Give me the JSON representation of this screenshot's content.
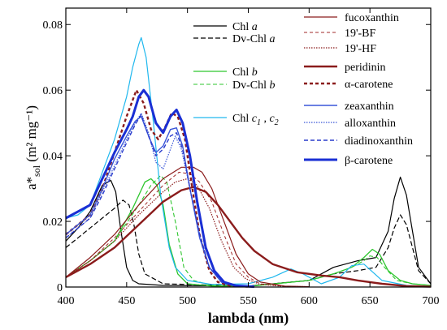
{
  "chart_data": {
    "type": "line",
    "xlabel": "lambda (nm)",
    "ylabel": "a*",
    "ylabel_sub": "sol",
    "ylabel_unit": " (m² mg⁻¹)",
    "xlim": [
      400,
      700
    ],
    "ylim": [
      0,
      0.085
    ],
    "xticks": [
      400,
      450,
      500,
      550,
      600,
      650,
      700
    ],
    "yticks": [
      0,
      0.02,
      0.04,
      0.06,
      0.08
    ],
    "ytick_labels": [
      "0",
      "0.02",
      "0.04",
      "0.06",
      "0.08"
    ],
    "grid": false,
    "legend_left": [
      {
        "prefix": "Chl ",
        "italic": "a",
        "suffix": ""
      },
      {
        "prefix": "Dv-Chl ",
        "italic": "a",
        "suffix": ""
      },
      {
        "prefix": "Chl ",
        "italic": "b",
        "suffix": ""
      },
      {
        "prefix": "Dv-Chl ",
        "italic": "b",
        "suffix": ""
      },
      {
        "prefix": "Chl ",
        "italic": "c",
        "sub1": "1",
        "mid": " , ",
        "italic2": "c",
        "sub2": "2"
      }
    ],
    "legend_right_labels": [
      "fucoxanthin",
      "19'-BF",
      "19'-HF",
      "peridinin",
      "α-carotene",
      "zeaxanthin",
      "alloxanthin",
      "diadinoxanthin",
      "β-carotene"
    ],
    "series": [
      {
        "legend": "L0",
        "color": "#000000",
        "dash": "",
        "width": 1.2,
        "x": [
          400,
          410,
          420,
          430,
          437,
          441,
          445,
          450,
          455,
          460,
          480,
          550,
          600,
          620,
          640,
          655,
          665,
          670,
          675,
          680,
          690,
          700
        ],
        "y": [
          0.014,
          0.018,
          0.023,
          0.031,
          0.0325,
          0.029,
          0.018,
          0.006,
          0.002,
          0.001,
          0.0005,
          0.0003,
          0.002,
          0.006,
          0.008,
          0.009,
          0.017,
          0.027,
          0.0335,
          0.028,
          0.006,
          0.001
        ]
      },
      {
        "legend": "L1",
        "color": "#000000",
        "dash": "6,3",
        "width": 1.2,
        "x": [
          400,
          410,
          420,
          430,
          440,
          447,
          452,
          456,
          460,
          465,
          480,
          550,
          600,
          620,
          640,
          655,
          665,
          670,
          675,
          680,
          690,
          700
        ],
        "y": [
          0.012,
          0.015,
          0.018,
          0.021,
          0.024,
          0.0265,
          0.025,
          0.019,
          0.01,
          0.004,
          0.001,
          0.0003,
          0.002,
          0.004,
          0.005,
          0.006,
          0.012,
          0.018,
          0.022,
          0.019,
          0.005,
          0.001
        ]
      },
      {
        "legend": "L2",
        "color": "#2ec62e",
        "dash": "",
        "width": 1.3,
        "x": [
          400,
          420,
          440,
          455,
          465,
          470,
          475,
          480,
          485,
          492,
          500,
          520,
          550,
          600,
          620,
          635,
          645,
          652,
          658,
          665,
          675,
          685,
          700
        ],
        "y": [
          0.003,
          0.008,
          0.014,
          0.024,
          0.032,
          0.033,
          0.031,
          0.025,
          0.013,
          0.004,
          0.001,
          0.0003,
          0.0002,
          0.002,
          0.004,
          0.006,
          0.009,
          0.0115,
          0.01,
          0.005,
          0.002,
          0.001,
          0.0005
        ]
      },
      {
        "legend": "L3",
        "color": "#2ec62e",
        "dash": "5,3",
        "width": 1.1,
        "x": [
          400,
          420,
          440,
          460,
          470,
          478,
          483,
          490,
          497,
          505,
          520,
          550,
          600,
          620,
          635,
          645,
          650,
          656,
          662,
          672,
          685,
          700
        ],
        "y": [
          0.003,
          0.008,
          0.014,
          0.025,
          0.031,
          0.034,
          0.032,
          0.02,
          0.006,
          0.002,
          0.0005,
          0.0002,
          0.002,
          0.004,
          0.006,
          0.008,
          0.0095,
          0.009,
          0.006,
          0.002,
          0.001,
          0.0005
        ]
      },
      {
        "legend": "L4",
        "color": "#20b8ee",
        "dash": "",
        "width": 1.2,
        "x": [
          400,
          410,
          420,
          430,
          440,
          450,
          455,
          460,
          462,
          466,
          472,
          478,
          485,
          490,
          500,
          520,
          550,
          570,
          585,
          595,
          610,
          625,
          635,
          645,
          660,
          680,
          700
        ],
        "y": [
          0.021,
          0.022,
          0.025,
          0.035,
          0.045,
          0.058,
          0.067,
          0.074,
          0.076,
          0.07,
          0.05,
          0.028,
          0.012,
          0.006,
          0.002,
          0.0008,
          0.001,
          0.003,
          0.0055,
          0.004,
          0.001,
          0.003,
          0.0065,
          0.007,
          0.002,
          0.0005,
          0.0002
        ]
      },
      {
        "legend": "R0",
        "color": "#8b1c1c",
        "dash": "",
        "width": 1.2,
        "x": [
          400,
          420,
          440,
          460,
          480,
          495,
          505,
          512,
          520,
          530,
          540,
          550,
          560,
          580,
          600
        ],
        "y": [
          0.003,
          0.009,
          0.016,
          0.025,
          0.033,
          0.0365,
          0.0365,
          0.035,
          0.03,
          0.02,
          0.01,
          0.004,
          0.0015,
          0.0003,
          0.0001
        ]
      },
      {
        "legend": "R1",
        "color": "#a02a2a",
        "dash": "4,3",
        "width": 1.0,
        "x": [
          400,
          420,
          440,
          460,
          480,
          493,
          502,
          510,
          520,
          530,
          540,
          550,
          560,
          580,
          600
        ],
        "y": [
          0.003,
          0.008,
          0.015,
          0.023,
          0.031,
          0.035,
          0.0345,
          0.032,
          0.026,
          0.016,
          0.007,
          0.003,
          0.001,
          0.0002,
          0.0001
        ]
      },
      {
        "legend": "R2",
        "color": "#8b1c1c",
        "dash": "1.5,1.5",
        "width": 1.2,
        "x": [
          400,
          420,
          440,
          460,
          480,
          490,
          500,
          508,
          518,
          528,
          538,
          548,
          560,
          580,
          600
        ],
        "y": [
          0.003,
          0.008,
          0.014,
          0.022,
          0.029,
          0.032,
          0.033,
          0.031,
          0.024,
          0.014,
          0.006,
          0.0025,
          0.0008,
          0.0002,
          0.0001
        ]
      },
      {
        "legend": "R3",
        "color": "#8b1c1c",
        "dash": "",
        "width": 2.4,
        "x": [
          400,
          420,
          440,
          460,
          480,
          495,
          505,
          515,
          525,
          535,
          545,
          555,
          570,
          590,
          610,
          625,
          640,
          660,
          680,
          700
        ],
        "y": [
          0.003,
          0.007,
          0.012,
          0.019,
          0.026,
          0.0295,
          0.0305,
          0.029,
          0.025,
          0.02,
          0.015,
          0.011,
          0.007,
          0.0045,
          0.0035,
          0.003,
          0.002,
          0.001,
          0.0003,
          0.0001
        ]
      },
      {
        "legend": "R4",
        "color": "#8b1c1c",
        "dash": "4,3",
        "width": 2.4,
        "x": [
          400,
          410,
          420,
          430,
          440,
          450,
          458,
          464,
          470,
          476,
          482,
          487,
          492,
          498,
          504,
          510,
          518,
          525,
          535,
          550
        ],
        "y": [
          0.016,
          0.019,
          0.022,
          0.03,
          0.041,
          0.052,
          0.06,
          0.056,
          0.048,
          0.045,
          0.049,
          0.053,
          0.052,
          0.045,
          0.03,
          0.016,
          0.005,
          0.0015,
          0.0004,
          0.0001
        ]
      },
      {
        "legend": "R5",
        "color": "#3a56d8",
        "dash": "",
        "width": 1.4,
        "x": [
          400,
          410,
          420,
          430,
          440,
          450,
          457,
          462,
          468,
          474,
          480,
          486,
          491,
          496,
          502,
          510,
          518,
          528,
          540,
          555
        ],
        "y": [
          0.016,
          0.019,
          0.022,
          0.03,
          0.039,
          0.046,
          0.0505,
          0.052,
          0.046,
          0.041,
          0.043,
          0.048,
          0.0485,
          0.043,
          0.03,
          0.015,
          0.006,
          0.0015,
          0.0004,
          0.0001
        ]
      },
      {
        "legend": "R6",
        "color": "#3a56d8",
        "dash": "1.5,1.5",
        "width": 1.2,
        "x": [
          400,
          410,
          420,
          430,
          440,
          450,
          457,
          462,
          468,
          474,
          480,
          485,
          490,
          495,
          502,
          510,
          518,
          528,
          540,
          555
        ],
        "y": [
          0.015,
          0.018,
          0.021,
          0.029,
          0.037,
          0.045,
          0.05,
          0.053,
          0.047,
          0.038,
          0.036,
          0.041,
          0.046,
          0.042,
          0.03,
          0.016,
          0.006,
          0.0015,
          0.0004,
          0.0001
        ]
      },
      {
        "legend": "R7",
        "color": "#2a3ccc",
        "dash": "5,3",
        "width": 1.4,
        "x": [
          400,
          410,
          420,
          430,
          440,
          450,
          457,
          462,
          468,
          474,
          480,
          486,
          491,
          496,
          502,
          510,
          518,
          528,
          540,
          555
        ],
        "y": [
          0.015,
          0.018,
          0.021,
          0.028,
          0.036,
          0.044,
          0.0495,
          0.0525,
          0.046,
          0.04,
          0.042,
          0.046,
          0.047,
          0.042,
          0.03,
          0.016,
          0.006,
          0.0015,
          0.0004,
          0.0001
        ]
      },
      {
        "legend": "R8",
        "color": "#1a2fd4",
        "dash": "",
        "width": 3.0,
        "x": [
          400,
          410,
          420,
          430,
          440,
          450,
          455,
          460,
          464,
          468,
          474,
          480,
          486,
          491,
          496,
          502,
          508,
          515,
          522,
          530,
          540,
          555
        ],
        "y": [
          0.021,
          0.023,
          0.025,
          0.033,
          0.041,
          0.048,
          0.052,
          0.058,
          0.06,
          0.058,
          0.05,
          0.047,
          0.052,
          0.054,
          0.05,
          0.04,
          0.026,
          0.012,
          0.005,
          0.0015,
          0.0004,
          0.0001
        ]
      }
    ]
  }
}
